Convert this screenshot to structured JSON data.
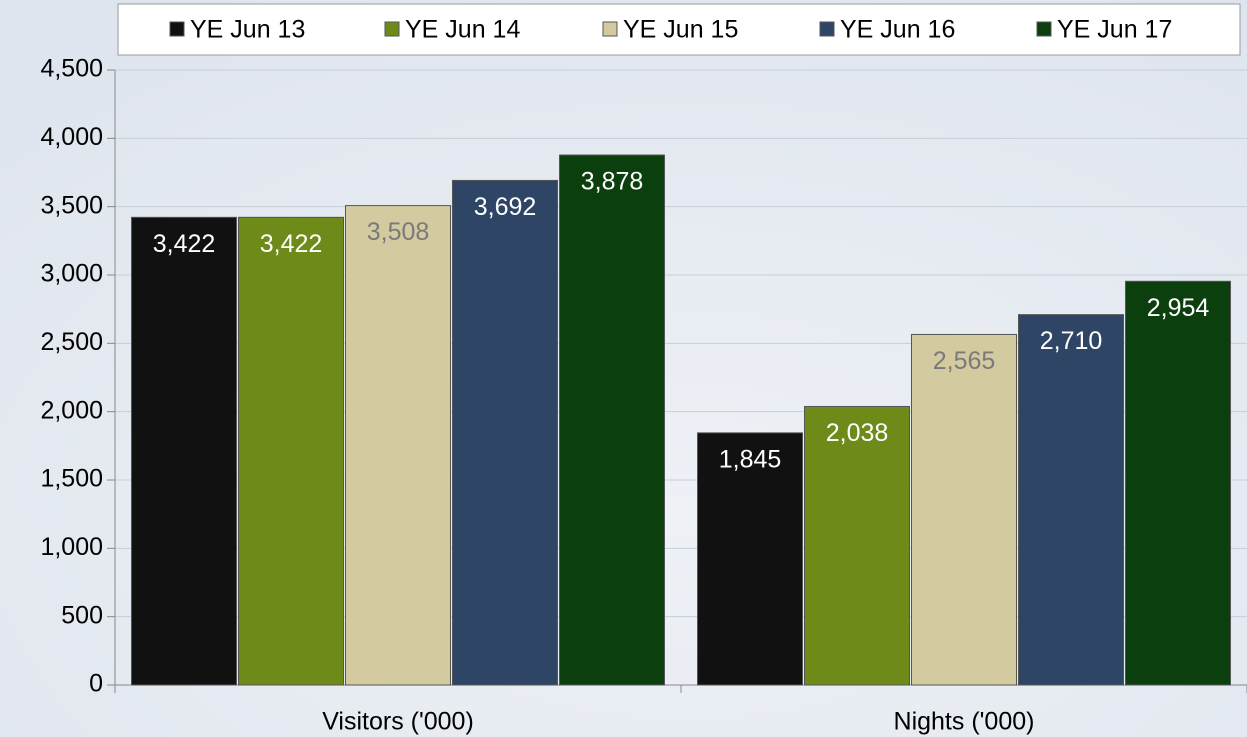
{
  "chart_data": {
    "type": "bar",
    "categories": [
      "Visitors ('000)",
      "Nights ('000)"
    ],
    "series": [
      {
        "name": "YE Jun 13",
        "color": "#111111",
        "label_color": "#ffffff",
        "values": [
          3422,
          1845
        ],
        "value_labels": [
          "3,422",
          "1,845"
        ]
      },
      {
        "name": "YE Jun 14",
        "color": "#6e8a18",
        "label_color": "#ffffff",
        "values": [
          3422,
          2038
        ],
        "value_labels": [
          "3,422",
          "2,038"
        ]
      },
      {
        "name": "YE Jun 15",
        "color": "#d3caa0",
        "label_color": "#7a7a7a",
        "values": [
          3508,
          2565
        ],
        "value_labels": [
          "3,508",
          "2,565"
        ]
      },
      {
        "name": "YE Jun 16",
        "color": "#2f4566",
        "label_color": "#ffffff",
        "values": [
          3692,
          2710
        ],
        "value_labels": [
          "3,692",
          "2,710"
        ]
      },
      {
        "name": "YE Jun 17",
        "color": "#0c3f0e",
        "label_color": "#ffffff",
        "values": [
          3878,
          2954
        ],
        "value_labels": [
          "3,878",
          "2,954"
        ]
      }
    ],
    "ylim": [
      0,
      4500
    ],
    "yticks": [
      0,
      500,
      {
        "value": 1000,
        "label": "1,000"
      },
      {
        "value": 1500,
        "label": "1,500"
      },
      {
        "value": 2000,
        "label": "2,000"
      },
      {
        "value": 2500,
        "label": "2,500"
      },
      {
        "value": 3000,
        "label": "3,000"
      },
      {
        "value": 3500,
        "label": "3,500"
      },
      {
        "value": 4000,
        "label": "4,000"
      },
      {
        "value": 4500,
        "label": "4,500"
      }
    ],
    "grid": true,
    "legend": "top"
  }
}
